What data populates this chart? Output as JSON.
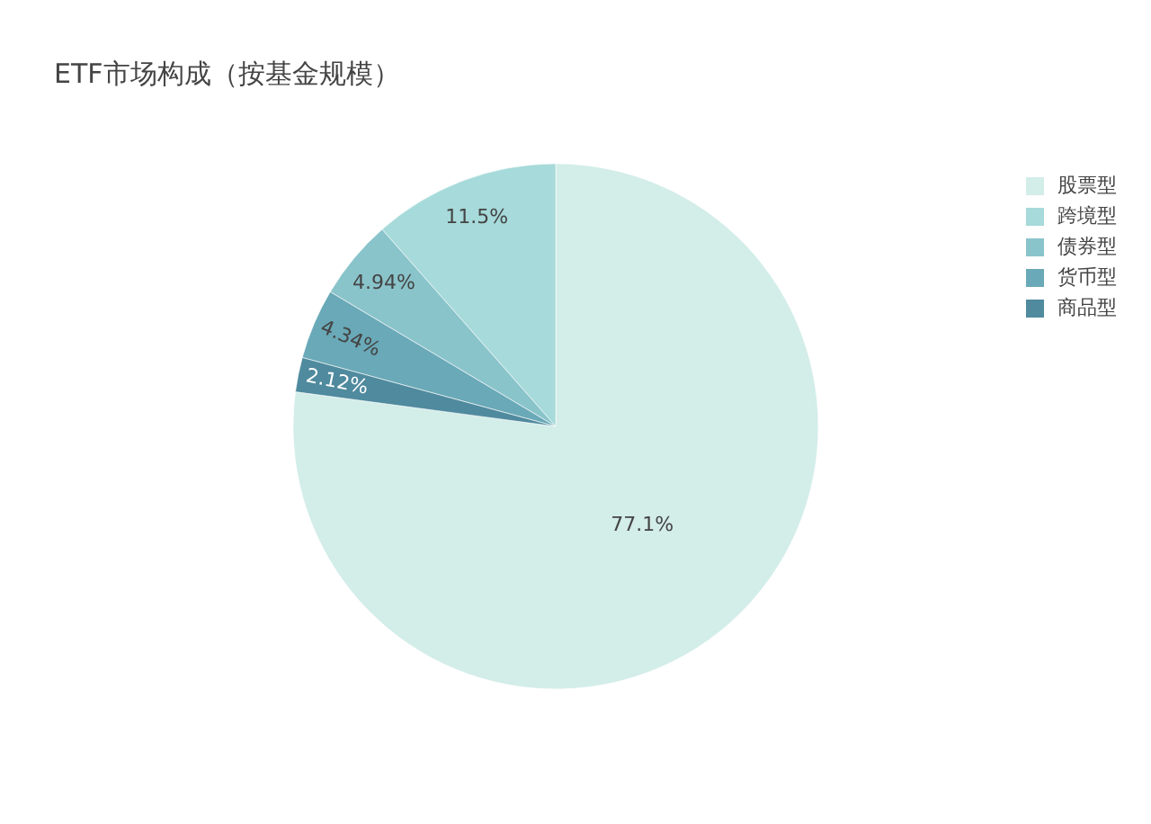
{
  "chart_data": {
    "type": "pie",
    "title": "ETF市场构成（按基金规模）",
    "categories": [
      "股票型",
      "跨境型",
      "债券型",
      "货币型",
      "商品型"
    ],
    "values": [
      77.1,
      11.5,
      4.94,
      4.34,
      2.12
    ],
    "colors": [
      "#d3ede9",
      "#a7dada",
      "#8ac4cb",
      "#6aa9b7",
      "#4f8a9e"
    ],
    "value_labels": [
      "77.1%",
      "11.5%",
      "4.94%",
      "4.34%",
      "2.12%"
    ],
    "legend": "top right"
  }
}
